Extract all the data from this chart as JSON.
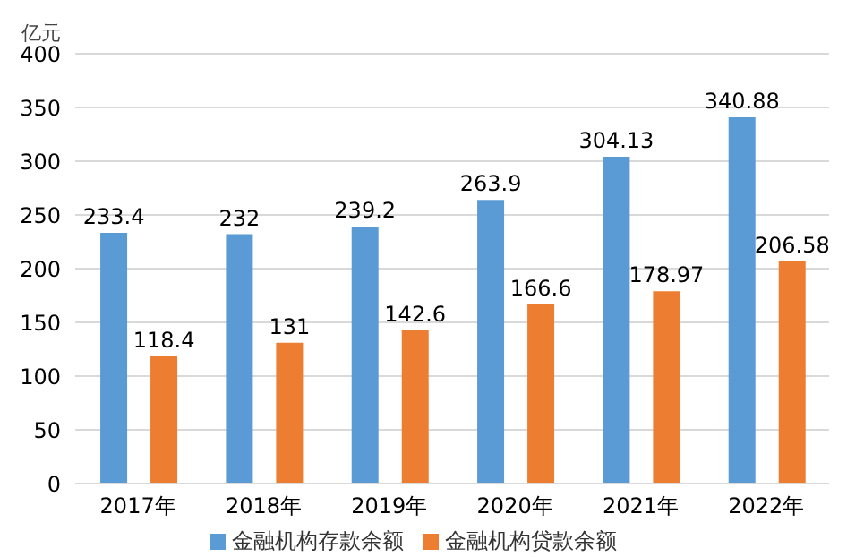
{
  "chart_data": {
    "type": "bar",
    "ylabel": "亿元",
    "categories": [
      "2017年",
      "2018年",
      "2019年",
      "2020年",
      "2021年",
      "2022年"
    ],
    "series": [
      {
        "name": "金融机构存款余额",
        "color": "#5b9bd5",
        "values": [
          233.4,
          232,
          239.2,
          263.9,
          304.13,
          340.88
        ]
      },
      {
        "name": "金融机构贷款余额",
        "color": "#ed7d31",
        "values": [
          118.4,
          131,
          142.6,
          166.6,
          178.97,
          206.58
        ]
      }
    ],
    "ylim": [
      0,
      400
    ],
    "yticks": [
      0,
      50,
      100,
      150,
      200,
      250,
      300,
      350,
      400
    ],
    "grid": "y",
    "legend": "bottom",
    "data_labels": true
  }
}
